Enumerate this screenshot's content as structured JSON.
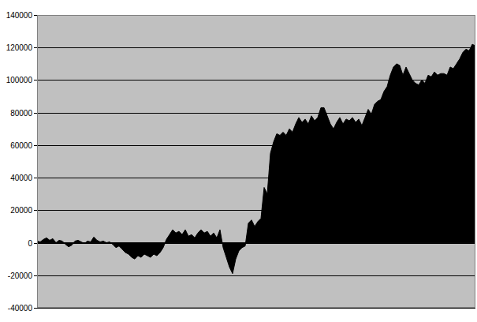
{
  "chart_data": {
    "type": "area",
    "color": "#000000",
    "grid": true,
    "tick_labels": "y",
    "categories": [
      null,
      null,
      null,
      null,
      null,
      null,
      null,
      null,
      null,
      null,
      null,
      null,
      null,
      null,
      null,
      null,
      null,
      null,
      null,
      null,
      null,
      null,
      null,
      null,
      null,
      null,
      null,
      null,
      null,
      null,
      null,
      null,
      null,
      null,
      null,
      null,
      null,
      null,
      null,
      null,
      null,
      null,
      null,
      null,
      null,
      null,
      null,
      null,
      null,
      null,
      null,
      null,
      null,
      null,
      null,
      null,
      null,
      null,
      null,
      null,
      null,
      null,
      null,
      null,
      null,
      null,
      null,
      null,
      null,
      null,
      null,
      null,
      null,
      null,
      null,
      null,
      null,
      null,
      null,
      null,
      null,
      null,
      null,
      null,
      null,
      null,
      null,
      null,
      null,
      null,
      null,
      null,
      null,
      null,
      null,
      null,
      null,
      null,
      null,
      null,
      null,
      null,
      null,
      null,
      null,
      null,
      null,
      null,
      null,
      null,
      null,
      null,
      null,
      null,
      null,
      null,
      null,
      null,
      null,
      null,
      null,
      null,
      null,
      null,
      null,
      null,
      null,
      null,
      null,
      null,
      null,
      null,
      null,
      null,
      null,
      null,
      null,
      null,
      null,
      null
    ],
    "values": [
      1000,
      500,
      2000,
      3000,
      1500,
      2500,
      0,
      1500,
      1000,
      -1000,
      -2500,
      -1500,
      1000,
      1500,
      500,
      -500,
      1000,
      500,
      3500,
      1500,
      500,
      1000,
      0,
      500,
      -1000,
      -3000,
      -2000,
      -4000,
      -6000,
      -7000,
      -9000,
      -10000,
      -8000,
      -9000,
      -7000,
      -8000,
      -9000,
      -7000,
      -8000,
      -6000,
      -3000,
      2000,
      5000,
      8000,
      6000,
      7000,
      5000,
      8000,
      4000,
      5000,
      3000,
      6000,
      8000,
      6000,
      7000,
      4000,
      6000,
      3000,
      8000,
      -3000,
      -9000,
      -15000,
      -19000,
      -10000,
      -5000,
      -3000,
      -2000,
      12000,
      14000,
      10000,
      13000,
      15000,
      34000,
      30000,
      55000,
      62000,
      67000,
      66000,
      68000,
      66000,
      70000,
      68000,
      73000,
      77000,
      74000,
      76000,
      73000,
      78000,
      75000,
      77000,
      83000,
      83000,
      78000,
      73000,
      70000,
      74000,
      77000,
      73000,
      76000,
      75000,
      77000,
      74000,
      76000,
      72000,
      77000,
      82000,
      79000,
      85000,
      87000,
      88000,
      93000,
      96000,
      103000,
      108000,
      110000,
      109000,
      103000,
      108000,
      104000,
      100000,
      98000,
      97000,
      100000,
      98000,
      103000,
      102000,
      105000,
      103000,
      104000,
      104000,
      103000,
      108000,
      107000,
      110000,
      113000,
      117000,
      119000,
      118000,
      122000,
      121000
    ],
    "ylim": [
      -40000,
      140000
    ],
    "yticks": [
      -40000,
      -20000,
      0,
      20000,
      40000,
      60000,
      80000,
      100000,
      120000,
      140000
    ]
  }
}
